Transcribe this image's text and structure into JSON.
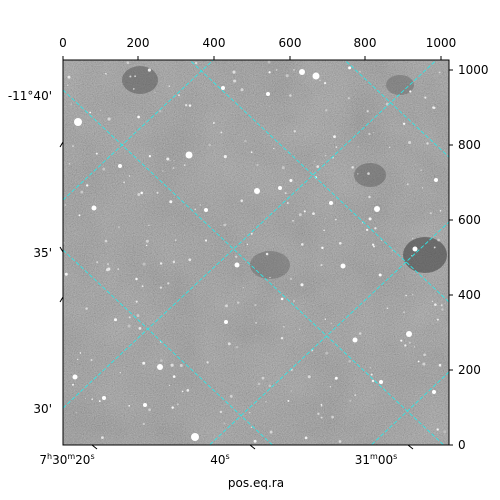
{
  "figure": {
    "xlabel": "pos.eq.ra",
    "top_ticks": [
      "0",
      "200",
      "400",
      "600",
      "800",
      "1000"
    ],
    "right_ticks": [
      "0",
      "200",
      "400",
      "600",
      "800",
      "1000"
    ],
    "dec_ticks": [
      "-11°40'",
      "35'",
      "30'"
    ],
    "ra_ticks": [
      {
        "h": "7",
        "h_unit": "h",
        "m": "30",
        "m_unit": "m",
        "s": "20",
        "s_unit": "s"
      },
      {
        "s": "40",
        "s_unit": "s"
      },
      {
        "m": "31",
        "m_unit": "m",
        "s": "00",
        "s_unit": "s"
      }
    ],
    "grid_color": "#2ee6e6",
    "background": "#ffffff"
  }
}
